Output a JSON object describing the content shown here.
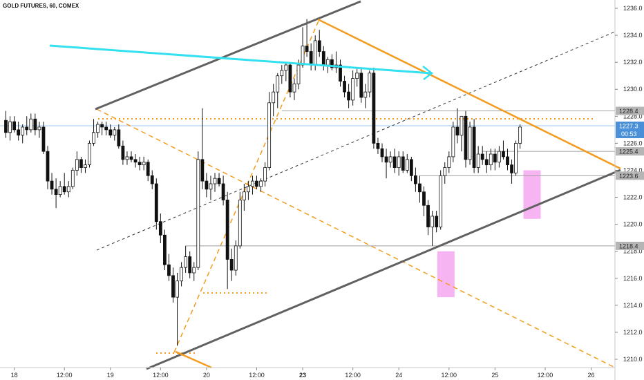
{
  "chart_data": {
    "type": "candlestick",
    "title": "GOLD FUTURES, 60, COMEX",
    "ylim": [
      1209.2,
      1236.6
    ],
    "y_ticks": [
      1210.0,
      1212.0,
      1214.0,
      1216.0,
      1218.0,
      1220.0,
      1222.0,
      1224.0,
      1226.0,
      1228.0,
      1230.0,
      1232.0,
      1234.0,
      1236.0
    ],
    "y_tick_labels": [
      "1210.0",
      "1212.0",
      "1214.0",
      "1216.0",
      "1218.0",
      "1220.0",
      "1222.0",
      "1224.0",
      "1226.0",
      "1228.0",
      "1230.0",
      "1232.0",
      "1234.0",
      "1236.0"
    ],
    "x_ticks": [
      {
        "bar": 2,
        "label": "18",
        "bold": false
      },
      {
        "bar": 14,
        "label": "12:00",
        "bold": false
      },
      {
        "bar": 25,
        "label": "19",
        "bold": false
      },
      {
        "bar": 37,
        "label": "12:00",
        "bold": false
      },
      {
        "bar": 48,
        "label": "20",
        "bold": false
      },
      {
        "bar": 60,
        "label": "12:00",
        "bold": false
      },
      {
        "bar": 71,
        "label": "23",
        "bold": true
      },
      {
        "bar": 83,
        "label": "12:00",
        "bold": false
      },
      {
        "bar": 94,
        "label": "24",
        "bold": false
      },
      {
        "bar": 106,
        "label": "12:00",
        "bold": false
      },
      {
        "bar": 117,
        "label": "25",
        "bold": false
      },
      {
        "bar": 129,
        "label": "12:00",
        "bold": false
      },
      {
        "bar": 140,
        "label": "26",
        "bold": false
      }
    ],
    "candles": [
      [
        1227.7,
        1228.4,
        1226.4,
        1226.8
      ],
      [
        1226.8,
        1228.0,
        1226.2,
        1227.6
      ],
      [
        1227.6,
        1228.0,
        1226.8,
        1227.0
      ],
      [
        1227.0,
        1227.6,
        1226.2,
        1226.6
      ],
      [
        1226.6,
        1227.4,
        1226.0,
        1227.2
      ],
      [
        1227.2,
        1228.0,
        1226.6,
        1227.0
      ],
      [
        1227.0,
        1228.2,
        1226.8,
        1227.8
      ],
      [
        1227.8,
        1228.2,
        1226.6,
        1227.0
      ],
      [
        1227.0,
        1227.6,
        1226.4,
        1227.2
      ],
      [
        1227.2,
        1227.6,
        1225.2,
        1225.4
      ],
      [
        1225.4,
        1225.8,
        1222.6,
        1223.2
      ],
      [
        1223.2,
        1223.8,
        1222.2,
        1222.6
      ],
      [
        1222.6,
        1223.4,
        1221.2,
        1222.2
      ],
      [
        1222.2,
        1223.2,
        1222.0,
        1222.8
      ],
      [
        1222.8,
        1223.8,
        1222.2,
        1222.4
      ],
      [
        1222.4,
        1223.2,
        1222.0,
        1222.8
      ],
      [
        1222.8,
        1224.2,
        1222.6,
        1224.0
      ],
      [
        1224.0,
        1225.4,
        1223.6,
        1224.8
      ],
      [
        1224.8,
        1225.0,
        1223.8,
        1224.2
      ],
      [
        1224.2,
        1224.8,
        1223.8,
        1224.4
      ],
      [
        1224.4,
        1226.2,
        1224.2,
        1226.0
      ],
      [
        1226.0,
        1227.8,
        1225.8,
        1226.8
      ],
      [
        1226.8,
        1227.6,
        1226.4,
        1227.4
      ],
      [
        1227.4,
        1227.6,
        1226.6,
        1227.2
      ],
      [
        1227.2,
        1227.6,
        1226.6,
        1227.0
      ],
      [
        1227.0,
        1227.4,
        1226.4,
        1226.6
      ],
      [
        1226.6,
        1227.2,
        1226.2,
        1227.0
      ],
      [
        1227.0,
        1227.4,
        1225.6,
        1225.8
      ],
      [
        1225.8,
        1226.2,
        1224.4,
        1224.8
      ],
      [
        1224.8,
        1225.4,
        1224.4,
        1225.0
      ],
      [
        1225.0,
        1225.4,
        1224.6,
        1224.8
      ],
      [
        1224.8,
        1225.2,
        1224.2,
        1224.6
      ],
      [
        1224.6,
        1225.0,
        1224.0,
        1224.4
      ],
      [
        1224.4,
        1225.0,
        1224.0,
        1224.6
      ],
      [
        1224.6,
        1224.8,
        1223.2,
        1223.6
      ],
      [
        1223.6,
        1224.0,
        1222.6,
        1223.0
      ],
      [
        1223.0,
        1223.4,
        1219.6,
        1220.2
      ],
      [
        1220.2,
        1220.8,
        1218.6,
        1219.2
      ],
      [
        1219.2,
        1219.6,
        1216.6,
        1217.0
      ],
      [
        1217.0,
        1217.8,
        1215.8,
        1216.2
      ],
      [
        1216.2,
        1216.8,
        1214.2,
        1214.6
      ],
      [
        1214.6,
        1216.4,
        1211.0,
        1215.8
      ],
      [
        1215.8,
        1217.2,
        1215.4,
        1216.8
      ],
      [
        1216.8,
        1218.4,
        1216.4,
        1217.6
      ],
      [
        1217.6,
        1218.0,
        1216.0,
        1216.4
      ],
      [
        1216.4,
        1217.2,
        1215.8,
        1216.8
      ],
      [
        1216.8,
        1225.4,
        1216.6,
        1224.8
      ],
      [
        1224.8,
        1228.6,
        1222.6,
        1223.2
      ],
      [
        1223.2,
        1223.8,
        1222.0,
        1222.6
      ],
      [
        1222.6,
        1223.6,
        1221.8,
        1223.0
      ],
      [
        1223.0,
        1223.8,
        1222.4,
        1223.4
      ],
      [
        1223.4,
        1223.8,
        1222.8,
        1223.0
      ],
      [
        1223.0,
        1223.6,
        1221.4,
        1221.8
      ],
      [
        1221.8,
        1222.4,
        1215.2,
        1217.4
      ],
      [
        1217.4,
        1218.2,
        1215.8,
        1216.6
      ],
      [
        1216.6,
        1218.8,
        1216.2,
        1218.4
      ],
      [
        1218.4,
        1222.4,
        1218.2,
        1221.8
      ],
      [
        1221.8,
        1223.0,
        1221.0,
        1222.4
      ],
      [
        1222.4,
        1223.2,
        1221.8,
        1222.8
      ],
      [
        1222.8,
        1223.6,
        1222.2,
        1223.2
      ],
      [
        1223.2,
        1223.6,
        1222.6,
        1222.8
      ],
      [
        1222.8,
        1223.4,
        1222.4,
        1223.2
      ],
      [
        1223.2,
        1224.6,
        1222.8,
        1224.2
      ],
      [
        1224.2,
        1229.8,
        1224.0,
        1229.0
      ],
      [
        1229.0,
        1230.4,
        1228.0,
        1229.8
      ],
      [
        1229.8,
        1231.2,
        1228.6,
        1231.0
      ],
      [
        1231.0,
        1231.8,
        1230.4,
        1231.4
      ],
      [
        1231.4,
        1232.0,
        1230.6,
        1231.8
      ],
      [
        1231.8,
        1232.0,
        1229.4,
        1229.8
      ],
      [
        1229.8,
        1230.8,
        1229.2,
        1230.4
      ],
      [
        1230.4,
        1232.2,
        1230.0,
        1231.8
      ],
      [
        1231.8,
        1234.6,
        1231.6,
        1233.2
      ],
      [
        1233.2,
        1235.2,
        1232.4,
        1232.8
      ],
      [
        1232.8,
        1233.4,
        1231.4,
        1231.8
      ],
      [
        1231.8,
        1234.0,
        1231.4,
        1233.6
      ],
      [
        1233.6,
        1234.4,
        1232.4,
        1232.8
      ],
      [
        1232.8,
        1233.2,
        1231.4,
        1231.8
      ],
      [
        1231.8,
        1232.4,
        1231.2,
        1232.2
      ],
      [
        1232.2,
        1232.6,
        1231.4,
        1231.6
      ],
      [
        1231.6,
        1232.8,
        1231.2,
        1231.8
      ],
      [
        1231.8,
        1232.2,
        1230.2,
        1230.6
      ],
      [
        1230.6,
        1231.0,
        1229.4,
        1229.8
      ],
      [
        1229.8,
        1230.4,
        1228.6,
        1229.2
      ],
      [
        1229.2,
        1231.4,
        1228.8,
        1230.8
      ],
      [
        1230.8,
        1231.6,
        1230.2,
        1231.2
      ],
      [
        1231.2,
        1231.6,
        1229.0,
        1229.4
      ],
      [
        1229.4,
        1230.4,
        1228.6,
        1229.8
      ],
      [
        1229.8,
        1231.4,
        1229.4,
        1231.2
      ],
      [
        1231.2,
        1231.6,
        1225.6,
        1226.0
      ],
      [
        1226.0,
        1226.4,
        1225.2,
        1225.6
      ],
      [
        1225.6,
        1226.0,
        1224.6,
        1225.0
      ],
      [
        1225.0,
        1225.6,
        1223.4,
        1224.6
      ],
      [
        1224.6,
        1225.4,
        1224.2,
        1225.0
      ],
      [
        1225.0,
        1225.6,
        1223.8,
        1224.2
      ],
      [
        1224.2,
        1225.4,
        1223.6,
        1225.0
      ],
      [
        1225.0,
        1225.4,
        1223.8,
        1224.0
      ],
      [
        1224.0,
        1225.2,
        1223.8,
        1224.8
      ],
      [
        1224.8,
        1225.0,
        1223.2,
        1223.6
      ],
      [
        1223.6,
        1224.2,
        1222.4,
        1223.0
      ],
      [
        1223.0,
        1223.6,
        1221.6,
        1222.4
      ],
      [
        1222.4,
        1222.8,
        1220.6,
        1221.4
      ],
      [
        1221.4,
        1221.8,
        1219.2,
        1219.8
      ],
      [
        1219.8,
        1221.0,
        1218.4,
        1220.6
      ],
      [
        1220.6,
        1221.0,
        1219.4,
        1219.8
      ],
      [
        1219.8,
        1224.0,
        1219.6,
        1223.6
      ],
      [
        1223.6,
        1224.6,
        1223.0,
        1224.2
      ],
      [
        1224.2,
        1225.4,
        1223.8,
        1225.0
      ],
      [
        1225.0,
        1227.6,
        1224.6,
        1227.2
      ],
      [
        1227.2,
        1228.6,
        1226.0,
        1226.6
      ],
      [
        1226.6,
        1228.0,
        1225.4,
        1228.0
      ],
      [
        1228.0,
        1228.4,
        1224.2,
        1224.8
      ],
      [
        1224.8,
        1227.6,
        1224.4,
        1227.2
      ],
      [
        1227.2,
        1227.8,
        1223.8,
        1224.2
      ],
      [
        1224.2,
        1225.8,
        1223.8,
        1225.2
      ],
      [
        1225.2,
        1225.8,
        1224.4,
        1224.8
      ],
      [
        1224.8,
        1225.4,
        1223.8,
        1224.4
      ],
      [
        1224.4,
        1225.6,
        1224.0,
        1225.2
      ],
      [
        1225.2,
        1225.6,
        1224.0,
        1224.6
      ],
      [
        1224.6,
        1225.8,
        1224.2,
        1225.4
      ],
      [
        1225.4,
        1226.2,
        1224.8,
        1225.0
      ],
      [
        1225.0,
        1225.6,
        1224.0,
        1224.4
      ],
      [
        1224.4,
        1224.8,
        1223.0,
        1223.8
      ],
      [
        1223.8,
        1226.2,
        1223.6,
        1226.0
      ],
      [
        1226.0,
        1227.4,
        1225.6,
        1227.2
      ]
    ],
    "horizontal_levels": [
      {
        "value": 1228.4,
        "label": "1228.4",
        "color": "#9e9e9e",
        "from_bar": 66
      },
      {
        "value": 1225.4,
        "label": "1225.4",
        "color": "#9e9e9e",
        "from_bar": 114
      },
      {
        "value": 1223.6,
        "label": "1223.6",
        "color": "#9e9e9e",
        "from_bar": 99
      },
      {
        "value": 1218.4,
        "label": "1218.4",
        "color": "#9e9e9e",
        "from_bar": 43
      }
    ],
    "last_price": {
      "value": 1227.3,
      "label": "1227.3",
      "countdown": "00:53",
      "color": "#4a90d9"
    },
    "colors": {
      "bull_body": "#ffffff",
      "bear_body": "#111111",
      "channel": "#616161",
      "orange": "#f39c1f",
      "cyan": "#33e0f0",
      "pink": "#f5a8f0",
      "grid_dash": "#333333"
    },
    "grid": false
  }
}
